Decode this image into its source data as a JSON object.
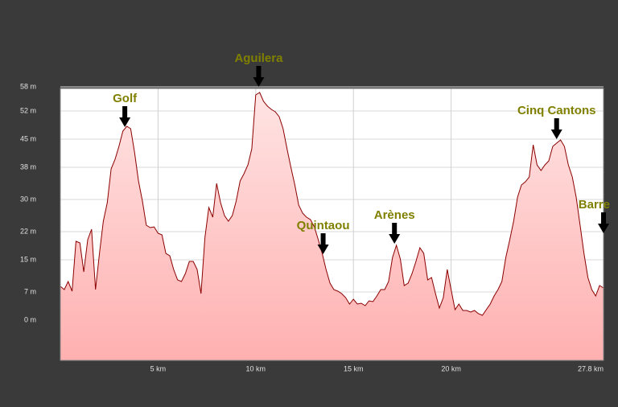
{
  "chart_data": {
    "type": "area",
    "color": "#8b0000",
    "fill": "#ffb6b6",
    "grid": true,
    "xlim": [
      0,
      27.8
    ],
    "ylim": [
      -10,
      57.6
    ],
    "xticks": [
      {
        "value": 5,
        "label": "5 km"
      },
      {
        "value": 10,
        "label": "10 km"
      },
      {
        "value": 15,
        "label": "15 km"
      },
      {
        "value": 20,
        "label": "20 km"
      },
      {
        "value": 27.8,
        "label": "27.8 km"
      }
    ],
    "yticks": [
      {
        "value": 0,
        "label": "0 m"
      },
      {
        "value": 7,
        "label": "7 m"
      },
      {
        "value": 15,
        "label": "15 m"
      },
      {
        "value": 22,
        "label": "22 m"
      },
      {
        "value": 30,
        "label": "30 m"
      },
      {
        "value": 38,
        "label": "38 m"
      },
      {
        "value": 45,
        "label": "45 m"
      },
      {
        "value": 52,
        "label": "52 m"
      },
      {
        "value": 58,
        "label": "58 m"
      }
    ],
    "x": [
      0,
      0.2,
      0.4,
      0.6,
      0.8,
      1,
      1.2,
      1.4,
      1.6,
      1.8,
      2,
      2.2,
      2.4,
      2.6,
      2.8,
      3,
      3.2,
      3.4,
      3.6,
      3.8,
      4,
      4.2,
      4.4,
      4.6,
      4.8,
      5,
      5.2,
      5.4,
      5.6,
      5.8,
      6,
      6.2,
      6.4,
      6.6,
      6.8,
      7,
      7.2,
      7.4,
      7.6,
      7.8,
      8,
      8.2,
      8.4,
      8.6,
      8.8,
      9,
      9.2,
      9.4,
      9.6,
      9.8,
      10,
      10.2,
      10.4,
      10.6,
      10.8,
      11,
      11.2,
      11.4,
      11.6,
      11.8,
      12,
      12.2,
      12.4,
      12.6,
      12.8,
      13,
      13.2,
      13.4,
      13.6,
      13.8,
      14,
      14.2,
      14.4,
      14.6,
      14.8,
      15,
      15.2,
      15.4,
      15.6,
      15.8,
      16,
      16.2,
      16.4,
      16.6,
      16.8,
      17,
      17.2,
      17.4,
      17.6,
      17.8,
      18,
      18.2,
      18.4,
      18.6,
      18.8,
      19,
      19.2,
      19.4,
      19.6,
      19.8,
      20,
      20.2,
      20.4,
      20.6,
      20.8,
      21,
      21.2,
      21.4,
      21.6,
      21.8,
      22,
      22.2,
      22.4,
      22.6,
      22.8,
      23,
      23.2,
      23.4,
      23.6,
      23.8,
      24,
      24.2,
      24.4,
      24.6,
      24.8,
      25,
      25.2,
      25.4,
      25.6,
      25.8,
      26,
      26.2,
      26.4,
      26.6,
      26.8,
      27,
      27.2,
      27.4,
      27.6,
      27.8
    ],
    "values": [
      8.4,
      7.6,
      9.6,
      7.2,
      19.6,
      19.2,
      12,
      20,
      22.6,
      7.6,
      16.6,
      24.6,
      29.2,
      37.6,
      40,
      43.2,
      47,
      48.2,
      47.6,
      41.6,
      34.6,
      29.6,
      23.6,
      23,
      23.2,
      21.6,
      21.2,
      16.6,
      16,
      12.6,
      10,
      9.6,
      11.6,
      14.6,
      14.6,
      12.6,
      6.6,
      20.6,
      28,
      25.6,
      34,
      29.2,
      26,
      24.6,
      26,
      29.6,
      34.6,
      36.4,
      38.6,
      42.6,
      56,
      56.6,
      54.4,
      53.2,
      52.4,
      51.8,
      50.6,
      47.6,
      42.6,
      38,
      33.6,
      28.6,
      26.6,
      25.6,
      25,
      23.2,
      20,
      16.6,
      12.6,
      9.2,
      7.6,
      7.2,
      6.6,
      5.6,
      4,
      5.2,
      4,
      4.2,
      3.6,
      4.8,
      4.6,
      6,
      7.6,
      7.6,
      9.6,
      15.6,
      18.6,
      15.2,
      8.6,
      9.2,
      11.6,
      14.6,
      18,
      16.6,
      10,
      10.6,
      6.6,
      3,
      5.6,
      12.6,
      7.6,
      2.6,
      4,
      2.4,
      2.4,
      2,
      2.4,
      1.6,
      1.2,
      2.6,
      4,
      6,
      7.6,
      9.6,
      15.6,
      20,
      24.6,
      30.6,
      33.6,
      34.4,
      35.6,
      43.6,
      38.6,
      37.2,
      38.6,
      39.6,
      43.2,
      44,
      44.8,
      43.2,
      38.6,
      35.6,
      30.6,
      23.6,
      16.6,
      10.6,
      7.6,
      6,
      8.6,
      8
    ],
    "annotations": [
      {
        "text": "Golf",
        "x": 3.3,
        "y": 48
      },
      {
        "text": "Aguilera",
        "x": 10.15,
        "y": 58
      },
      {
        "text": "Quintaou",
        "x": 13.45,
        "y": 16.4
      },
      {
        "text": "Arènes",
        "x": 17.1,
        "y": 19
      },
      {
        "text": "Cinq Cantons",
        "x": 25.4,
        "y": 45
      },
      {
        "text": "Barre",
        "x": 27.8,
        "y": 21.6
      }
    ]
  }
}
